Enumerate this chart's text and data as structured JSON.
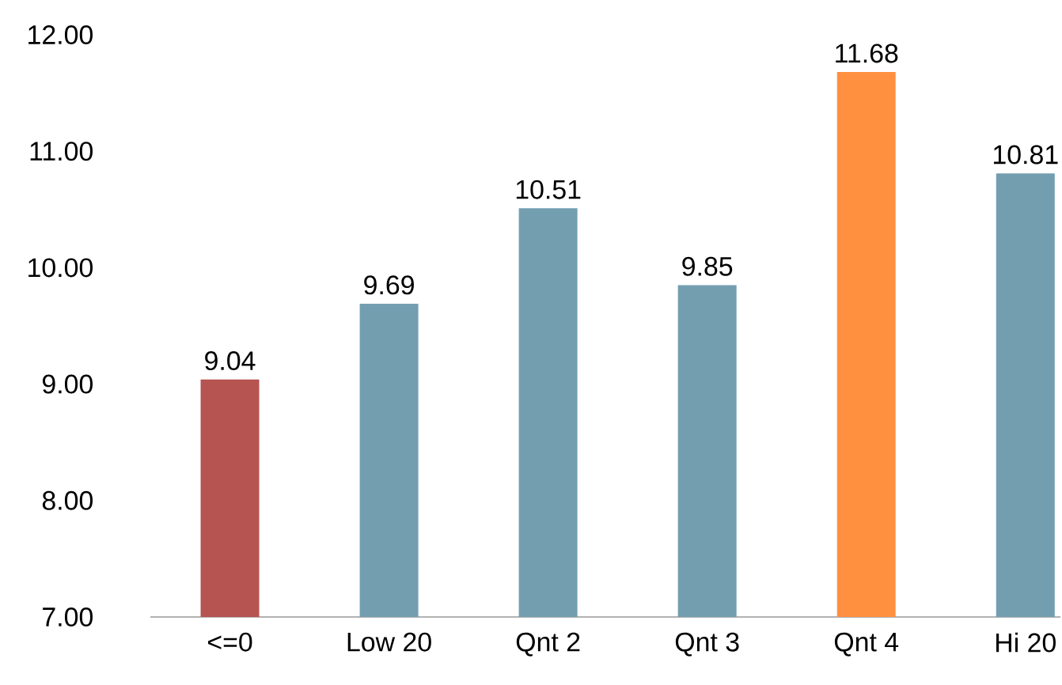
{
  "chart_data": {
    "type": "bar",
    "categories": [
      "<=0",
      "Low 20",
      "Qnt 2",
      "Qnt 3",
      "Qnt 4",
      "Hi 20"
    ],
    "values": [
      9.04,
      9.69,
      10.51,
      9.85,
      11.68,
      10.81
    ],
    "colors": [
      "#b55451",
      "#739eb0",
      "#739eb0",
      "#739eb0",
      "#ff9040",
      "#739eb0"
    ],
    "ylim": [
      7,
      12
    ],
    "yticks": [
      {
        "value": 7,
        "label": "7.00"
      },
      {
        "value": 8,
        "label": "8.00"
      },
      {
        "value": 9,
        "label": "9.00"
      },
      {
        "value": 10,
        "label": "10.00"
      },
      {
        "value": 11,
        "label": "11.00"
      },
      {
        "value": 12,
        "label": "12.00"
      }
    ],
    "data_labels": true
  }
}
